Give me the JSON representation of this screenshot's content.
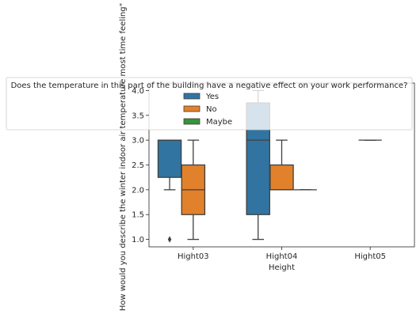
{
  "chart_data": {
    "type": "boxplot",
    "xlabel": "Height",
    "ylabel": "How would you describe the winter indoor air temperature most time feeling\"",
    "categories": [
      "Hight03",
      "Hight04",
      "Hight05"
    ],
    "yticks": [
      1.0,
      1.5,
      2.0,
      2.5,
      3.0,
      3.5,
      4.0
    ],
    "ytick_labels": [
      "1.0",
      "1.5",
      "2.0",
      "2.5",
      "3.0",
      "3.5",
      "4.0"
    ],
    "ylim": [
      0.85,
      4.15
    ],
    "legend": {
      "title": "Does the temperature in this part of the building have a negative effect on your work performance?",
      "placement": "top-center"
    },
    "series": [
      {
        "name": "Yes",
        "color": "#3274a1",
        "boxes": [
          {
            "category": "Hight03",
            "q1": 2.25,
            "median": 3.0,
            "q3": 3.0,
            "whislo": 2.0,
            "whishi": 3.0,
            "fliers": [
              1.0
            ]
          },
          {
            "category": "Hight04",
            "q1": 1.5,
            "median": 3.0,
            "q3": 3.75,
            "whislo": 1.0,
            "whishi": 4.0,
            "fliers": []
          },
          null
        ]
      },
      {
        "name": "No",
        "color": "#e1812c",
        "boxes": [
          {
            "category": "Hight03",
            "q1": 1.5,
            "median": 2.0,
            "q3": 2.5,
            "whislo": 1.0,
            "whishi": 3.0,
            "fliers": []
          },
          {
            "category": "Hight04",
            "q1": 2.0,
            "median": 2.0,
            "q3": 2.5,
            "whislo": 2.0,
            "whishi": 3.0,
            "fliers": []
          },
          {
            "category": "Hight05",
            "q1": 3.0,
            "median": 3.0,
            "q3": 3.0,
            "whislo": 3.0,
            "whishi": 3.0,
            "fliers": []
          }
        ]
      },
      {
        "name": "Maybe",
        "color": "#3a923a",
        "boxes": [
          null,
          {
            "category": "Hight04",
            "q1": 2.0,
            "median": 2.0,
            "q3": 2.0,
            "whislo": 2.0,
            "whishi": 2.0,
            "fliers": []
          },
          null
        ]
      }
    ]
  }
}
